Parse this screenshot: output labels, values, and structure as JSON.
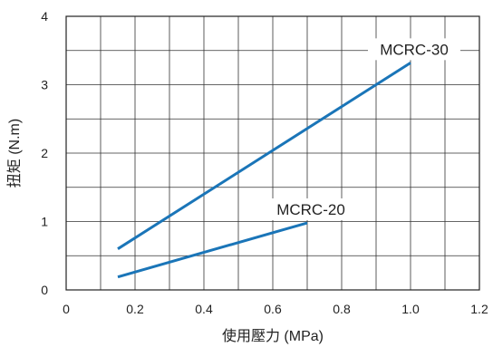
{
  "chart_data": {
    "type": "line",
    "xlabel": "使用壓力 (MPa)",
    "ylabel": "扭矩 (N.m)",
    "xlim": [
      0,
      1.2
    ],
    "ylim": [
      0,
      4
    ],
    "x_ticks": [
      "0",
      "0.2",
      "0.4",
      "0.6",
      "0.8",
      "1.0",
      "1.2"
    ],
    "y_ticks": [
      "0",
      "1",
      "2",
      "3",
      "4"
    ],
    "grid": true,
    "series": [
      {
        "name": "MCRC-30",
        "color": "#1a75b8",
        "x": [
          0.15,
          1.0
        ],
        "y": [
          0.6,
          3.32
        ]
      },
      {
        "name": "MCRC-20",
        "color": "#1a75b8",
        "x": [
          0.15,
          0.7
        ],
        "y": [
          0.19,
          0.98
        ]
      }
    ]
  }
}
